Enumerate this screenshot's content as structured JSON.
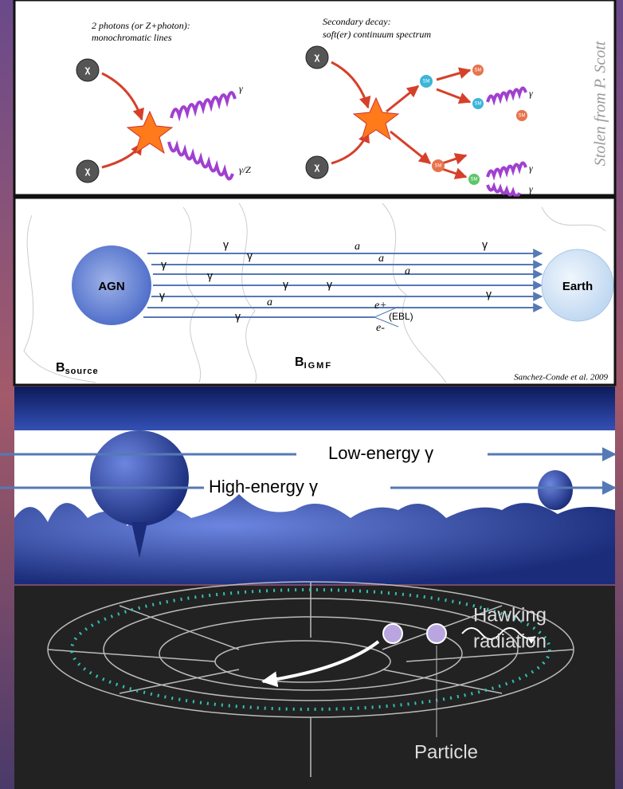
{
  "panel1": {
    "heading_left": [
      "2 photons (or Z+photon):",
      "monochromatic lines"
    ],
    "heading_right": [
      "Secondary decay:",
      "soft(er) continuum spectrum"
    ],
    "particle_labels": [
      "χ",
      "χ",
      "χ",
      "χ"
    ],
    "photon_labels": [
      "γ",
      "γ/Z",
      "γ",
      "γ",
      "γ"
    ],
    "sm_labels": [
      "SM",
      "SM",
      "SM",
      "SM",
      "SM",
      "SM"
    ],
    "credit": "Stolen from P. Scott"
  },
  "panel2": {
    "source": "AGN",
    "target": "Earth",
    "labels": [
      "γ",
      "γ",
      "γ",
      "γ",
      "γ",
      "γ",
      "γ",
      "γ",
      "a",
      "a",
      "a",
      "a",
      "γ",
      "γ"
    ],
    "pair": [
      "e+",
      "e-"
    ],
    "ebl": "(EBL)",
    "b_source": {
      "symbol": "B",
      "subscript": "source"
    },
    "b_igmf": {
      "symbol": "B",
      "subscript": "IGMF"
    },
    "credit": "Sanchez-Conde et al. 2009"
  },
  "panel3": {
    "low": "Low-energy γ",
    "high": "High-energy γ"
  },
  "panel4": {
    "hawking": [
      "Hawking",
      "radiation"
    ],
    "particle": "Particle"
  }
}
